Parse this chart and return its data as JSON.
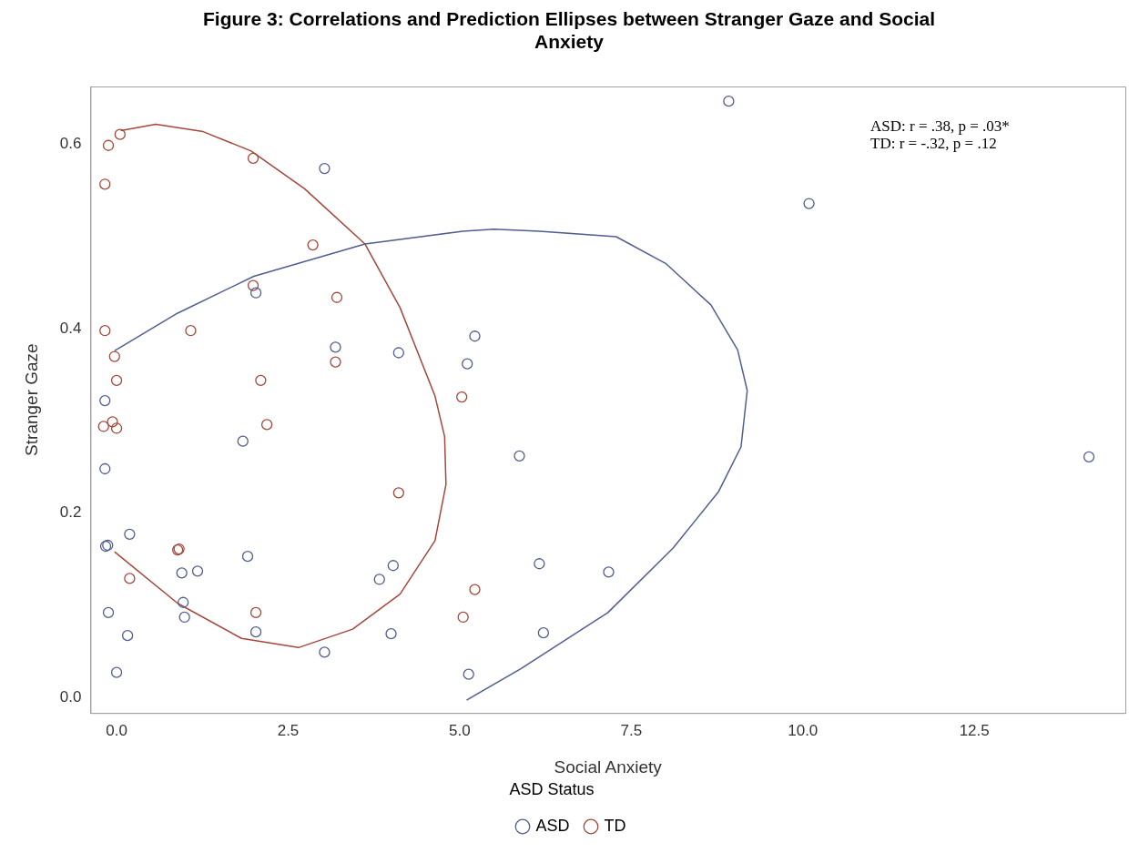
{
  "chart_data": {
    "type": "scatter",
    "title": "Figure 3: Correlations and Prediction Ellipses between Stranger Gaze and Social Anxiety",
    "xlabel": "Social Anxiety",
    "ylabel": "Stranger Gaze",
    "legend_title": "ASD Status",
    "legend": "bottom",
    "marker": "circle",
    "annotations": [
      "ASD: r = .38, p = .03*",
      "TD: r = -.32, p = .12"
    ],
    "xlim": [
      -0.38,
      14.7
    ],
    "ylim": [
      -0.017,
      0.663
    ],
    "xticks": [
      {
        "value": 0,
        "label": "0.0"
      },
      2.5,
      {
        "value": 5,
        "label": "5.0"
      },
      7.5,
      {
        "value": 10,
        "label": "10.0"
      },
      12.5
    ],
    "yticks": [
      {
        "value": 0,
        "label": "0.0"
      },
      0.2,
      0.4,
      0.6
    ],
    "series": [
      {
        "name": "ASD",
        "color": "#4f5f92",
        "x": [
          3.03,
          2.03,
          3.19,
          4.11,
          5.22,
          5.11,
          -0.17,
          1.84,
          5.87,
          -0.17,
          0.19,
          -0.16,
          -0.13,
          1.91,
          0.95,
          1.18,
          4.03,
          3.83,
          0.97,
          0.99,
          2.03,
          -0.12,
          0.16,
          0.0,
          3.03,
          4.0,
          5.13,
          6.16,
          7.17,
          6.22,
          14.17,
          8.92,
          10.09
        ],
        "values": [
          0.574,
          0.439,
          0.38,
          0.374,
          0.392,
          0.362,
          0.322,
          0.278,
          0.262,
          0.248,
          0.177,
          0.164,
          0.165,
          0.153,
          0.135,
          0.137,
          0.143,
          0.128,
          0.103,
          0.087,
          0.071,
          0.092,
          0.067,
          0.027,
          0.049,
          0.069,
          0.025,
          0.145,
          0.136,
          0.07,
          0.261,
          0.647,
          0.536
        ]
      },
      {
        "name": "TD",
        "color": "#a5473b",
        "x": [
          0.05,
          -0.12,
          -0.17,
          1.99,
          2.86,
          1.99,
          3.21,
          -0.17,
          1.08,
          -0.03,
          3.19,
          0.0,
          2.1,
          -0.19,
          -0.06,
          0.0,
          2.19,
          5.03,
          4.11,
          0.89,
          0.91,
          0.19,
          2.03,
          5.22,
          5.05
        ],
        "values": [
          0.611,
          0.599,
          0.557,
          0.585,
          0.491,
          0.447,
          0.434,
          0.398,
          0.398,
          0.37,
          0.364,
          0.344,
          0.344,
          0.294,
          0.299,
          0.292,
          0.296,
          0.326,
          0.222,
          0.16,
          0.161,
          0.129,
          0.092,
          0.117,
          0.087
        ]
      },
      {
        "type": "line",
        "marker": "none",
        "color": "#4f5f92",
        "x": [
          -0.03,
          0.89,
          2.0,
          3.62,
          5.05,
          5.5,
          6.16,
          7.28,
          8.0,
          8.66,
          9.05,
          9.19,
          9.1,
          8.77,
          8.11,
          7.16,
          5.89,
          5.1
        ],
        "values": [
          0.376,
          0.417,
          0.457,
          0.492,
          0.506,
          0.508,
          0.506,
          0.5,
          0.471,
          0.426,
          0.377,
          0.333,
          0.272,
          0.223,
          0.162,
          0.092,
          0.031,
          -0.003
        ]
      },
      {
        "type": "line",
        "marker": "none",
        "color": "#a5473b",
        "x": [
          0.06,
          0.57,
          1.26,
          1.96,
          2.74,
          3.62,
          4.13,
          4.64,
          4.78,
          4.8,
          4.64,
          4.13,
          3.44,
          2.65,
          1.82,
          0.89,
          -0.03
        ],
        "values": [
          0.615,
          0.622,
          0.614,
          0.593,
          0.552,
          0.492,
          0.423,
          0.327,
          0.283,
          0.231,
          0.17,
          0.112,
          0.074,
          0.054,
          0.064,
          0.102,
          0.158
        ]
      }
    ]
  }
}
